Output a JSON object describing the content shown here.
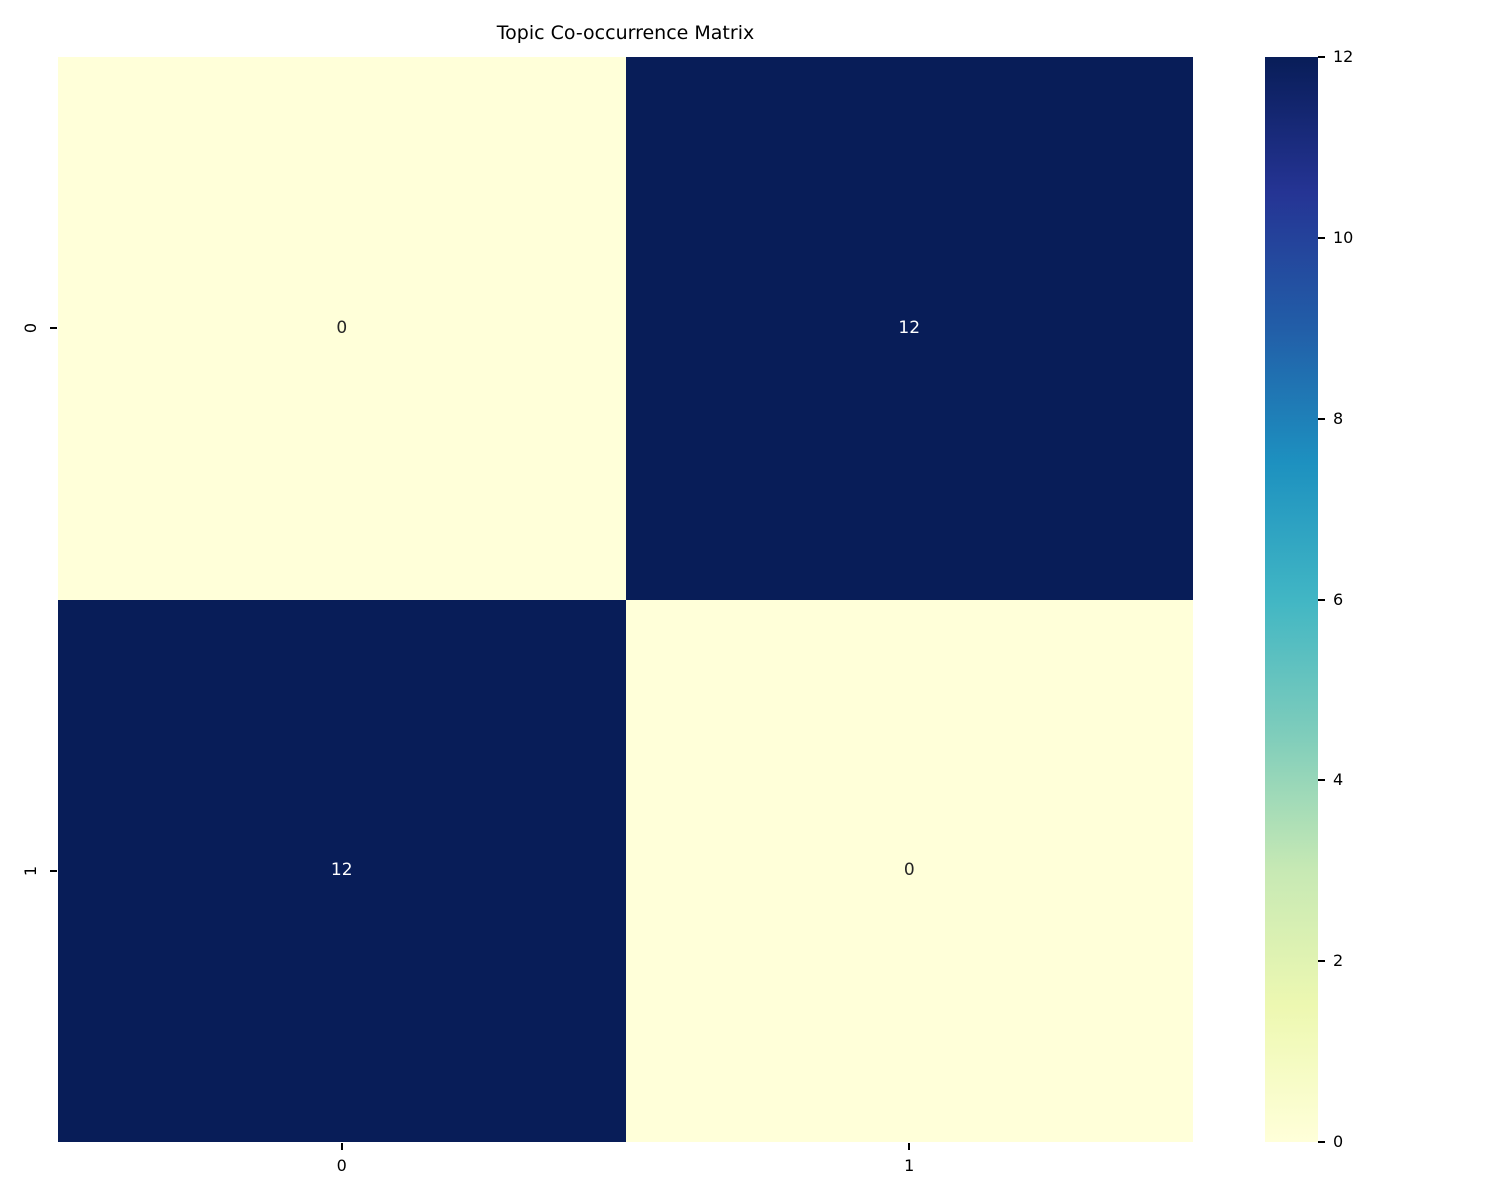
{
  "chart_data": {
    "type": "heatmap",
    "title": "Topic Co-occurrence Matrix",
    "x_tick_labels": [
      "0",
      "1"
    ],
    "y_tick_labels": [
      "0",
      "1"
    ],
    "values": [
      [
        0,
        12
      ],
      [
        12,
        0
      ]
    ],
    "vmin": 0,
    "vmax": 12,
    "grid": false,
    "colormap": {
      "name": "YlGnBu",
      "stops": [
        "#ffffd9",
        "#edf8b1",
        "#c7e9b4",
        "#7fcdbb",
        "#41b6c4",
        "#1d91c0",
        "#225ea8",
        "#253494",
        "#081d58"
      ]
    },
    "cell_colors": {
      "value_0": "#ffffd9",
      "value_12": "#081d58"
    },
    "annotation_text_dark": "#262626",
    "annotation_text_light": "#ffffff",
    "colorbar": {
      "position": "right",
      "orientation": "vertical",
      "tick_labels": [
        "0",
        "2",
        "4",
        "6",
        "8",
        "10",
        "12"
      ],
      "tick_values": [
        0,
        2,
        4,
        6,
        8,
        10,
        12
      ]
    },
    "background_color": "#ffffff"
  }
}
